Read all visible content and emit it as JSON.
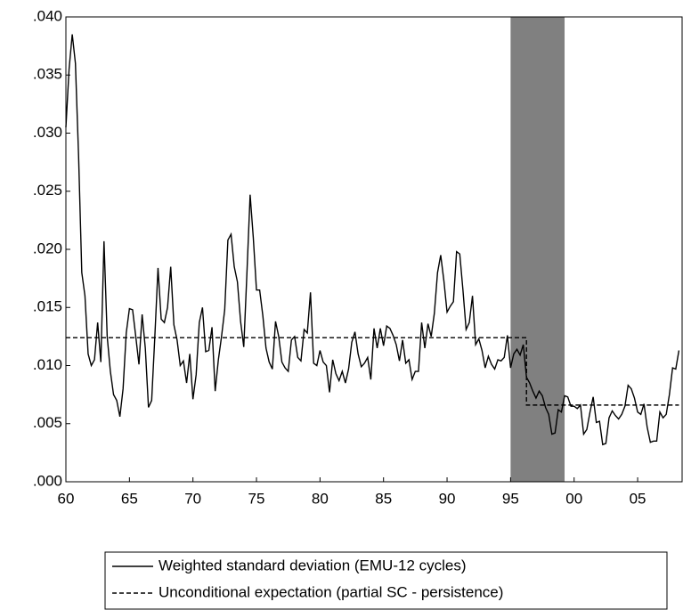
{
  "chart_data": {
    "type": "line",
    "xlim": [
      1960,
      2008.5
    ],
    "xticks": [
      {
        "value": 1960,
        "label": "60"
      },
      {
        "value": 1965,
        "label": "65"
      },
      {
        "value": 1970,
        "label": "70"
      },
      {
        "value": 1975,
        "label": "75"
      },
      {
        "value": 1980,
        "label": "80"
      },
      {
        "value": 1985,
        "label": "85"
      },
      {
        "value": 1990,
        "label": "90"
      },
      {
        "value": 1995,
        "label": "95"
      },
      {
        "value": 2000,
        "label": "00"
      },
      {
        "value": 2005,
        "label": "05"
      }
    ],
    "ylim": [
      0,
      0.04
    ],
    "yticks": [
      {
        "value": 0,
        "label": ".000"
      },
      {
        "value": 0.005,
        "label": ".005"
      },
      {
        "value": 0.01,
        "label": ".010"
      },
      {
        "value": 0.015,
        "label": ".015"
      },
      {
        "value": 0.02,
        "label": ".020"
      },
      {
        "value": 0.025,
        "label": ".025"
      },
      {
        "value": 0.03,
        "label": ".030"
      },
      {
        "value": 0.035,
        "label": ".035"
      },
      {
        "value": 0.04,
        "label": ".040"
      }
    ],
    "shaded_region": {
      "x": [
        1995.0,
        1999.25
      ],
      "color": "#808080"
    },
    "series": [
      {
        "name": "Weighted standard deviation (EMU-12 cycles)",
        "color": "#000000",
        "dash": "solid",
        "x": [
          1960,
          1960.25,
          1960.5,
          1960.75,
          1961,
          1961.25,
          1961.5,
          1961.75,
          1962,
          1962.25,
          1962.5,
          1962.75,
          1963,
          1963.25,
          1963.5,
          1963.75,
          1964,
          1964.25,
          1964.5,
          1964.75,
          1965,
          1965.25,
          1965.5,
          1965.75,
          1966,
          1966.25,
          1966.5,
          1966.75,
          1967,
          1967.25,
          1967.5,
          1967.75,
          1968,
          1968.25,
          1968.5,
          1968.75,
          1969,
          1969.25,
          1969.5,
          1969.75,
          1970,
          1970.25,
          1970.5,
          1970.75,
          1971,
          1971.25,
          1971.5,
          1971.75,
          1972,
          1972.25,
          1972.5,
          1972.75,
          1973,
          1973.25,
          1973.5,
          1973.75,
          1974,
          1974.25,
          1974.5,
          1974.75,
          1975,
          1975.25,
          1975.5,
          1975.75,
          1976,
          1976.25,
          1976.5,
          1976.75,
          1977,
          1977.25,
          1977.5,
          1977.75,
          1978,
          1978.25,
          1978.5,
          1978.75,
          1979,
          1979.25,
          1979.5,
          1979.75,
          1980,
          1980.25,
          1980.5,
          1980.75,
          1981,
          1981.25,
          1981.5,
          1981.75,
          1982,
          1982.25,
          1982.5,
          1982.75,
          1983,
          1983.25,
          1983.5,
          1983.75,
          1984,
          1984.25,
          1984.5,
          1984.75,
          1985,
          1985.25,
          1985.5,
          1985.75,
          1986,
          1986.25,
          1986.5,
          1986.75,
          1987,
          1987.25,
          1987.5,
          1987.75,
          1988,
          1988.25,
          1988.5,
          1988.75,
          1989,
          1989.25,
          1989.5,
          1989.75,
          1990,
          1990.25,
          1990.5,
          1990.75,
          1991,
          1991.25,
          1991.5,
          1991.75,
          1992,
          1992.25,
          1992.5,
          1992.75,
          1993,
          1993.25,
          1993.5,
          1993.75,
          1994,
          1994.25,
          1994.5,
          1994.75,
          1995,
          1995.25,
          1995.5,
          1995.75,
          1996,
          1996.25,
          1996.5,
          1996.75,
          1997,
          1997.25,
          1997.5,
          1997.75,
          1998,
          1998.25,
          1998.5,
          1998.75,
          1999,
          1999.25,
          1999.5,
          1999.75,
          2000,
          2000.25,
          2000.5,
          2000.75,
          2001,
          2001.25,
          2001.5,
          2001.75,
          2002,
          2002.25,
          2002.5,
          2002.75,
          2003,
          2003.25,
          2003.5,
          2003.75,
          2004,
          2004.25,
          2004.5,
          2004.75,
          2005,
          2005.25,
          2005.5,
          2005.75,
          2006,
          2006.25,
          2006.5,
          2006.75,
          2007,
          2007.25,
          2007.5,
          2007.75,
          2008,
          2008.25
        ],
        "values": [
          0.0305,
          0.0355,
          0.0385,
          0.036,
          0.028,
          0.018,
          0.016,
          0.011,
          0.01,
          0.0105,
          0.0137,
          0.0103,
          0.0207,
          0.0125,
          0.0095,
          0.0075,
          0.007,
          0.0056,
          0.008,
          0.0128,
          0.0149,
          0.0148,
          0.0125,
          0.0101,
          0.0144,
          0.0115,
          0.0064,
          0.007,
          0.0125,
          0.0184,
          0.014,
          0.0137,
          0.015,
          0.0185,
          0.0135,
          0.0122,
          0.01,
          0.0104,
          0.0085,
          0.011,
          0.0071,
          0.0092,
          0.0137,
          0.015,
          0.0112,
          0.0113,
          0.0133,
          0.0078,
          0.0105,
          0.0125,
          0.0148,
          0.0208,
          0.0213,
          0.0185,
          0.0172,
          0.0138,
          0.0116,
          0.018,
          0.0247,
          0.021,
          0.0165,
          0.0165,
          0.0143,
          0.0115,
          0.0103,
          0.0097,
          0.0138,
          0.0125,
          0.0103,
          0.0098,
          0.0095,
          0.0122,
          0.0125,
          0.0107,
          0.0104,
          0.0131,
          0.0128,
          0.0163,
          0.0102,
          0.01,
          0.0113,
          0.0103,
          0.01,
          0.0077,
          0.0105,
          0.0093,
          0.0087,
          0.0095,
          0.0085,
          0.0097,
          0.012,
          0.0129,
          0.011,
          0.0099,
          0.0102,
          0.0107,
          0.0088,
          0.0132,
          0.0115,
          0.0132,
          0.0117,
          0.0134,
          0.0132,
          0.0126,
          0.0118,
          0.0104,
          0.0122,
          0.0102,
          0.0105,
          0.0088,
          0.0095,
          0.0095,
          0.0137,
          0.0115,
          0.0136,
          0.0125,
          0.0145,
          0.018,
          0.0195,
          0.0173,
          0.0146,
          0.0151,
          0.0155,
          0.0198,
          0.0196,
          0.0165,
          0.0131,
          0.0137,
          0.016,
          0.0118,
          0.0123,
          0.0113,
          0.0098,
          0.0108,
          0.0101,
          0.0097,
          0.0105,
          0.0104,
          0.0107,
          0.0126,
          0.0098,
          0.011,
          0.0114,
          0.0109,
          0.0118,
          0.009,
          0.0085,
          0.0078,
          0.0072,
          0.0078,
          0.0074,
          0.0064,
          0.0058,
          0.0041,
          0.0042,
          0.0062,
          0.006,
          0.0074,
          0.0073,
          0.0065,
          0.0065,
          0.0063,
          0.0066,
          0.0041,
          0.0045,
          0.006,
          0.0073,
          0.0051,
          0.0052,
          0.0032,
          0.0033,
          0.0055,
          0.0061,
          0.0057,
          0.0054,
          0.0058,
          0.0065,
          0.0083,
          0.008,
          0.0072,
          0.006,
          0.0058,
          0.0067,
          0.0047,
          0.0034,
          0.0035,
          0.0035,
          0.006,
          0.0055,
          0.0058,
          0.0075,
          0.0098,
          0.0097,
          0.0113
        ]
      },
      {
        "name": "Unconditional expectation (partial SC - persistence)",
        "color": "#000000",
        "dash": "dashed",
        "x": [
          1960,
          1996.25,
          1996.25,
          2008.25
        ],
        "values": [
          0.0124,
          0.0124,
          0.0066,
          0.0066
        ]
      }
    ]
  }
}
